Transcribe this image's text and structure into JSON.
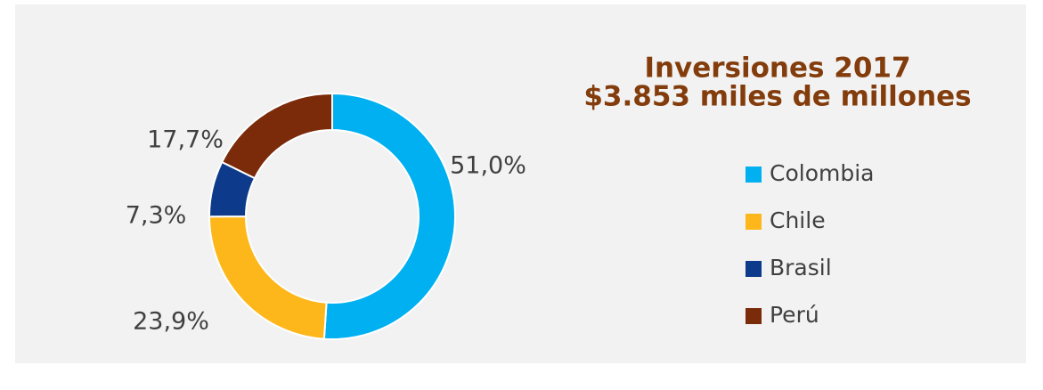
{
  "chart_data": {
    "type": "donut",
    "title": "Inversiones 2017",
    "subtitle": "$3.853 miles de millones",
    "categories": [
      "Colombia",
      "Chile",
      "Brasil",
      "Perú"
    ],
    "values": [
      51.0,
      23.9,
      7.3,
      17.7
    ],
    "value_labels": [
      "51,0%",
      "23,9%",
      "7,3%",
      "17,7%"
    ],
    "colors": [
      "#00b0f0",
      "#fdb71a",
      "#0d3a8a",
      "#7b2a0a"
    ],
    "legend": "right"
  }
}
